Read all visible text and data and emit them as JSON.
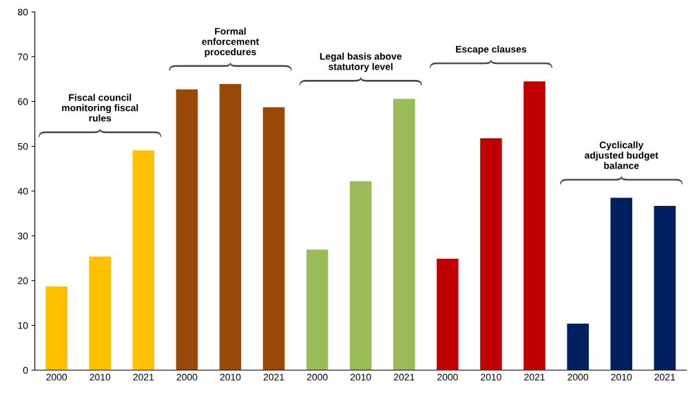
{
  "chart_data": {
    "type": "bar",
    "categories": [
      "2000",
      "2010",
      "2021",
      "2000",
      "2010",
      "2021",
      "2000",
      "2010",
      "2021",
      "2000",
      "2010",
      "2021",
      "2000",
      "2010",
      "2021"
    ],
    "values": [
      18.7,
      25.4,
      49.1,
      62.7,
      63.9,
      58.7,
      26.9,
      42.2,
      60.6,
      24.9,
      51.8,
      64.5,
      10.4,
      38.5,
      36.7
    ],
    "colors": [
      "#ffc000",
      "#ffc000",
      "#ffc000",
      "#984807",
      "#984807",
      "#984807",
      "#9bbb59",
      "#9bbb59",
      "#9bbb59",
      "#c00000",
      "#c00000",
      "#c00000",
      "#002060",
      "#002060",
      "#002060"
    ],
    "ylim": [
      0,
      80
    ],
    "yticks": [
      0,
      10,
      20,
      30,
      40,
      50,
      60,
      70,
      80
    ],
    "grid": false,
    "legend": false,
    "annotations": [
      "Fiscal council\nmonitoring fiscal\nrules",
      "Formal\nenforcement\nprocedures",
      "Legal basis above\nstatutory level",
      "Escape clauses",
      "Cyclically\nadjusted budget\nbalance"
    ]
  }
}
